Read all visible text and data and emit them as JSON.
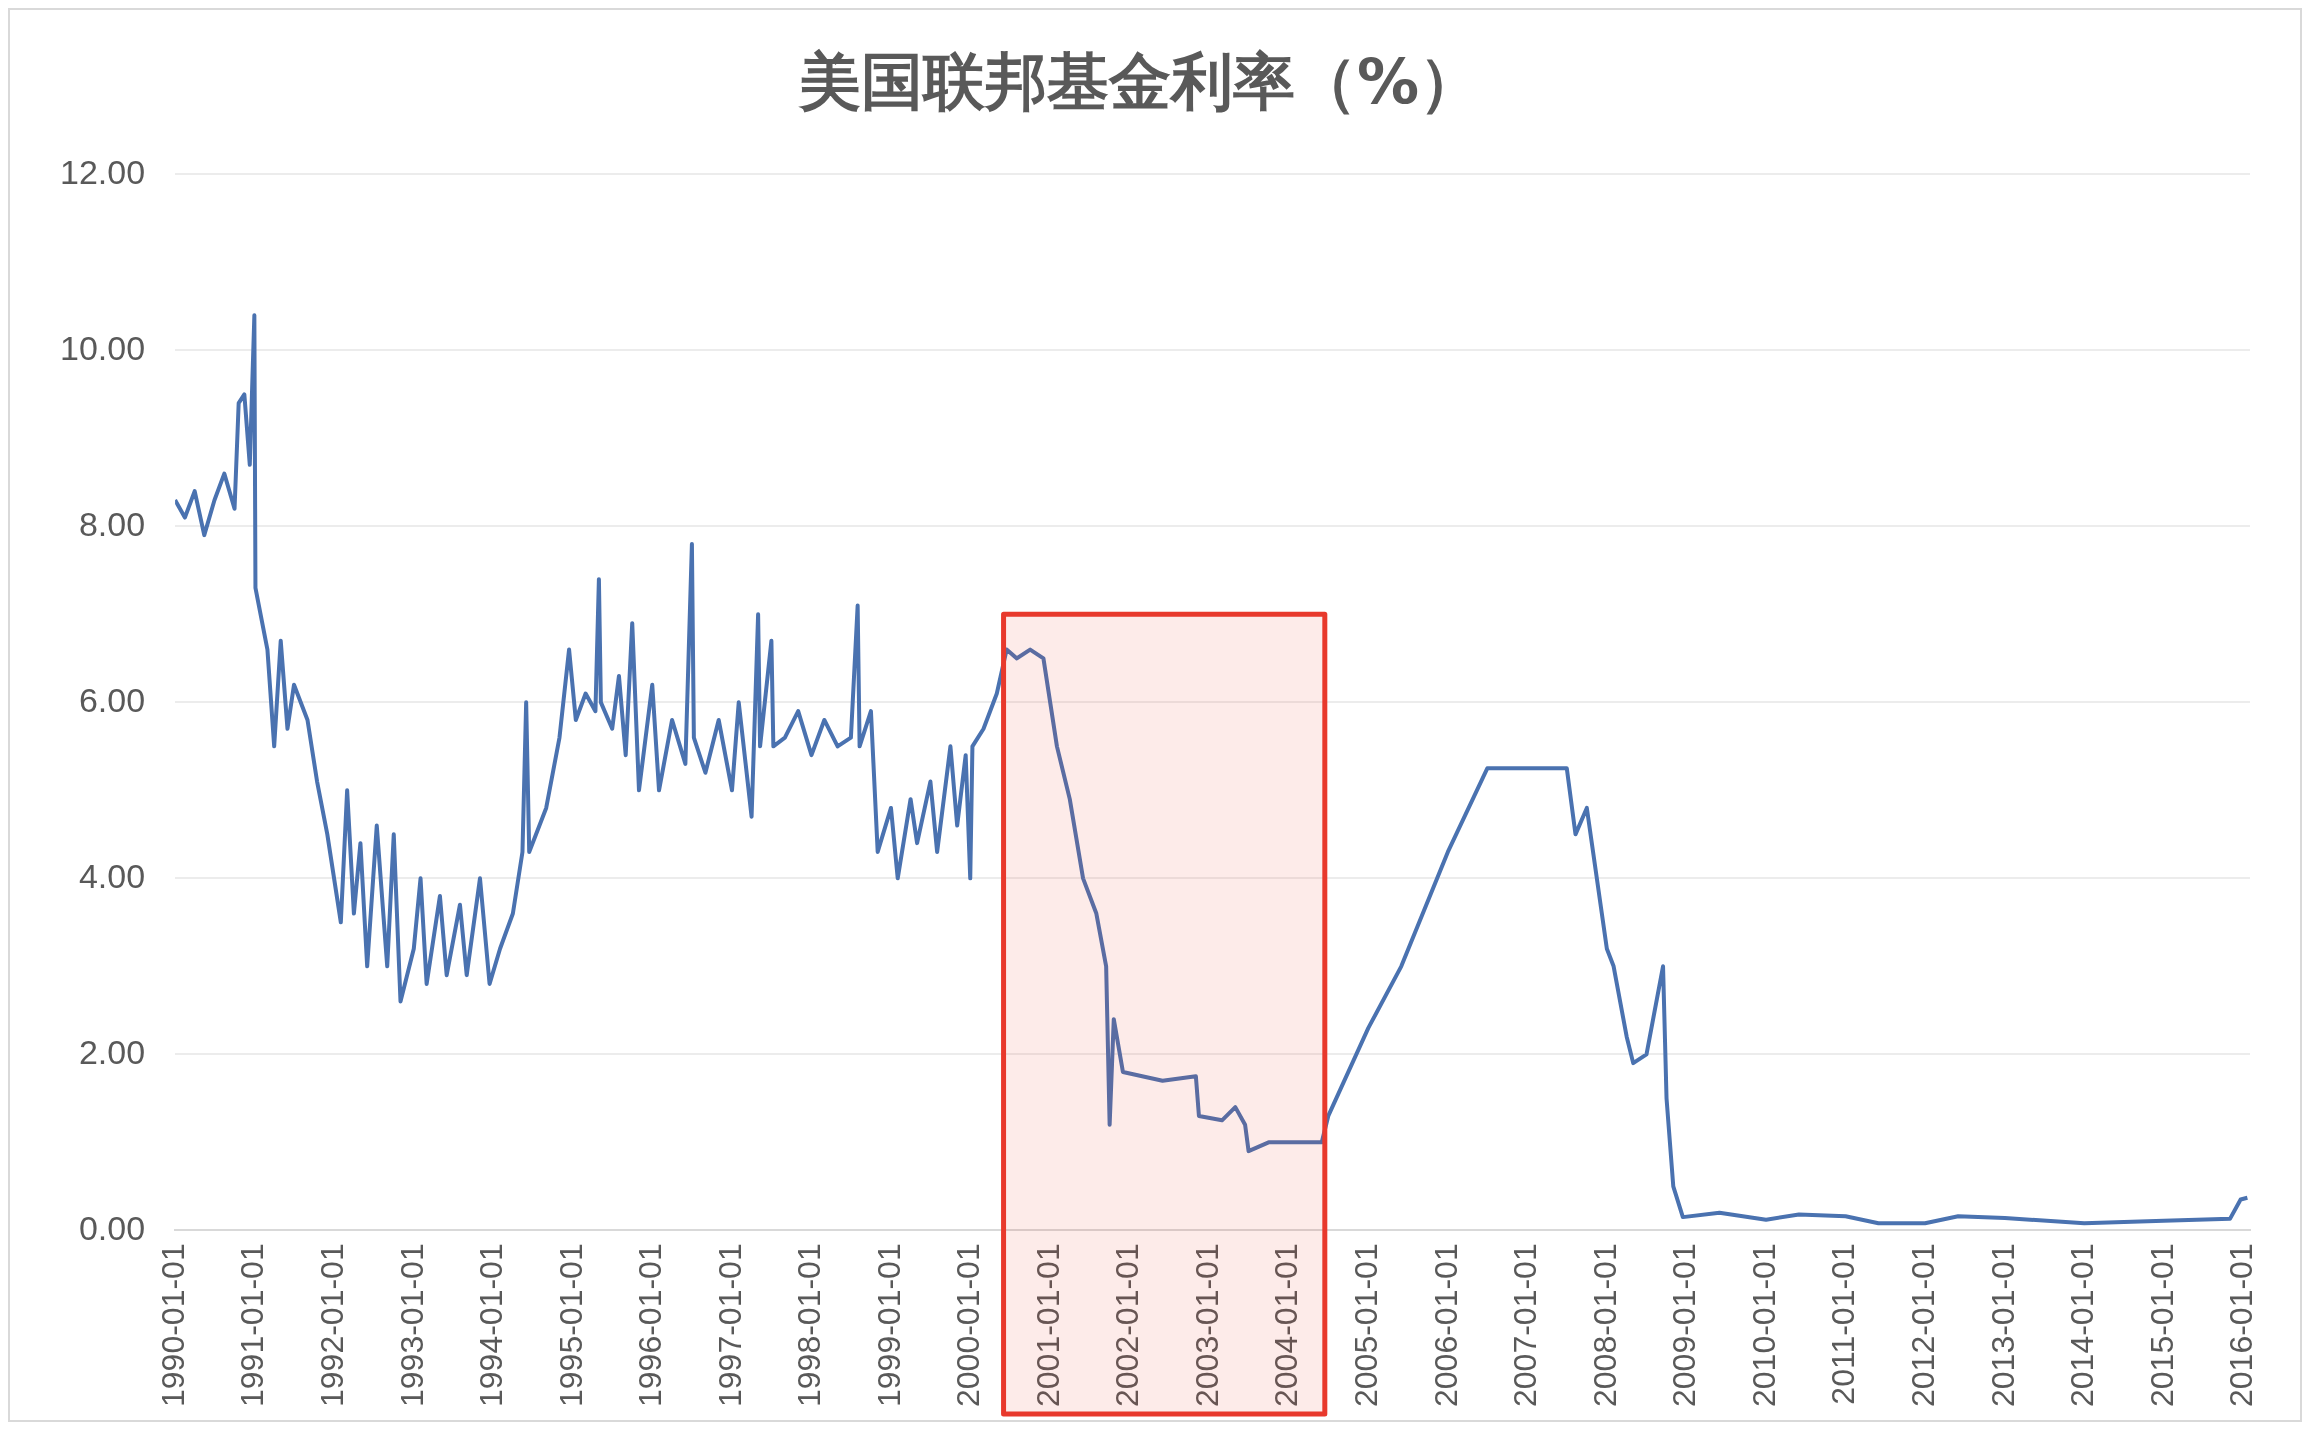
{
  "chart_data": {
    "type": "line",
    "title": "美国联邦基金利率（%）",
    "x": [
      "1990-01-01",
      "1990-02-15",
      "1990-04-01",
      "1990-05-15",
      "1990-07-01",
      "1990-08-15",
      "1990-10-01",
      "1990-10-20",
      "1990-11-15",
      "1990-12-10",
      "1990-12-31",
      "1991-01-05",
      "1991-03-01",
      "1991-04-01",
      "1991-05-01",
      "1991-06-01",
      "1991-07-01",
      "1991-09-01",
      "1991-10-15",
      "1991-12-01",
      "1992-01-01",
      "1992-02-01",
      "1992-03-01",
      "1992-04-01",
      "1992-05-01",
      "1992-06-01",
      "1992-07-15",
      "1992-09-01",
      "1992-10-01",
      "1992-11-01",
      "1993-01-01",
      "1993-02-01",
      "1993-03-01",
      "1993-05-01",
      "1993-06-01",
      "1993-08-01",
      "1993-09-01",
      "1993-11-01",
      "1993-12-15",
      "1994-02-01",
      "1994-04-01",
      "1994-05-15",
      "1994-06-01",
      "1994-06-15",
      "1994-09-01",
      "1994-11-01",
      "1994-12-15",
      "1995-01-15",
      "1995-03-01",
      "1995-04-15",
      "1995-05-01",
      "1995-05-10",
      "1995-07-01",
      "1995-08-01",
      "1995-09-01",
      "1995-10-01",
      "1995-11-01",
      "1996-01-01",
      "1996-02-01",
      "1996-04-01",
      "1996-06-01",
      "1996-07-01",
      "1996-07-10",
      "1996-09-01",
      "1996-11-01",
      "1997-01-01",
      "1997-02-01",
      "1997-04-01",
      "1997-05-01",
      "1997-05-10",
      "1997-07-01",
      "1997-07-10",
      "1997-09-01",
      "1997-11-01",
      "1998-01-01",
      "1998-03-01",
      "1998-05-01",
      "1998-07-01",
      "1998-08-01",
      "1998-08-10",
      "1998-10-01",
      "1998-11-01",
      "1999-01-01",
      "1999-02-01",
      "1999-04-01",
      "1999-05-01",
      "1999-07-01",
      "1999-08-01",
      "1999-10-01",
      "1999-11-01",
      "1999-12-10",
      "1999-12-31",
      "2000-01-10",
      "2000-03-01",
      "2000-05-01",
      "2000-06-15",
      "2000-08-01",
      "2000-10-01",
      "2000-12-01",
      "2001-01-01",
      "2001-02-01",
      "2001-04-01",
      "2001-06-01",
      "2001-08-01",
      "2001-09-15",
      "2001-10-01",
      "2001-10-20",
      "2001-12-01",
      "2002-06-01",
      "2002-11-01",
      "2002-11-15",
      "2003-03-01",
      "2003-05-01",
      "2003-06-15",
      "2003-07-01",
      "2003-10-01",
      "2004-06-01",
      "2004-07-01",
      "2005-01-01",
      "2005-06-01",
      "2006-01-01",
      "2006-07-01",
      "2007-07-01",
      "2007-08-10",
      "2007-10-01",
      "2008-01-01",
      "2008-02-01",
      "2008-04-01",
      "2008-05-01",
      "2008-07-01",
      "2008-09-15",
      "2008-10-01",
      "2008-11-01",
      "2008-12-15",
      "2009-06-01",
      "2010-01-01",
      "2010-06-01",
      "2011-01-01",
      "2011-06-01",
      "2012-01-01",
      "2012-06-01",
      "2013-01-01",
      "2014-01-01",
      "2015-01-01",
      "2015-11-01",
      "2015-12-20",
      "2016-01-20"
    ],
    "series": [
      {
        "color": "#4a72b0",
        "values": [
          8.3,
          8.1,
          8.4,
          7.9,
          8.3,
          8.6,
          8.2,
          9.4,
          9.5,
          8.7,
          10.4,
          7.3,
          6.6,
          5.5,
          6.7,
          5.7,
          6.2,
          5.8,
          5.1,
          4.5,
          4.0,
          3.5,
          5.0,
          3.6,
          4.4,
          3.0,
          4.6,
          3.0,
          4.5,
          2.6,
          3.2,
          4.0,
          2.8,
          3.8,
          2.9,
          3.7,
          2.9,
          4.0,
          2.8,
          3.2,
          3.6,
          4.3,
          6.0,
          4.3,
          4.8,
          5.6,
          6.6,
          5.8,
          6.1,
          5.9,
          7.4,
          6.0,
          5.7,
          6.3,
          5.4,
          6.9,
          5.0,
          6.2,
          5.0,
          5.8,
          5.3,
          7.8,
          5.6,
          5.2,
          5.8,
          5.0,
          6.0,
          4.7,
          7.0,
          5.5,
          6.7,
          5.5,
          5.6,
          5.9,
          5.4,
          5.8,
          5.5,
          5.6,
          7.1,
          5.5,
          5.9,
          4.3,
          4.8,
          4.0,
          4.9,
          4.4,
          5.1,
          4.3,
          5.5,
          4.6,
          5.4,
          4.0,
          5.5,
          5.7,
          6.1,
          6.6,
          6.5,
          6.6,
          6.5,
          6.0,
          5.5,
          4.9,
          4.0,
          3.6,
          3.0,
          1.2,
          2.4,
          1.8,
          1.7,
          1.75,
          1.3,
          1.25,
          1.4,
          1.2,
          0.9,
          1.0,
          1.0,
          1.3,
          2.3,
          3.0,
          4.3,
          5.25,
          5.25,
          4.5,
          4.8,
          3.2,
          3.0,
          2.2,
          1.9,
          2.0,
          3.0,
          1.5,
          0.5,
          0.15,
          0.2,
          0.12,
          0.18,
          0.16,
          0.08,
          0.08,
          0.16,
          0.14,
          0.08,
          0.11,
          0.13,
          0.35,
          0.37
        ]
      }
    ],
    "xlim": [
      "1990-01-01",
      "2016-02-01"
    ],
    "xticks": [
      {
        "value": "1990-01-01",
        "label": "1990-01-01"
      },
      {
        "value": "1991-01-01",
        "label": "1991-01-01"
      },
      {
        "value": "1992-01-01",
        "label": "1992-01-01"
      },
      {
        "value": "1993-01-01",
        "label": "1993-01-01"
      },
      {
        "value": "1994-01-01",
        "label": "1994-01-01"
      },
      {
        "value": "1995-01-01",
        "label": "1995-01-01"
      },
      {
        "value": "1996-01-01",
        "label": "1996-01-01"
      },
      {
        "value": "1997-01-01",
        "label": "1997-01-01"
      },
      {
        "value": "1998-01-01",
        "label": "1998-01-01"
      },
      {
        "value": "1999-01-01",
        "label": "1999-01-01"
      },
      {
        "value": "2000-01-01",
        "label": "2000-01-01"
      },
      {
        "value": "2001-01-01",
        "label": "2001-01-01"
      },
      {
        "value": "2002-01-01",
        "label": "2002-01-01"
      },
      {
        "value": "2003-01-01",
        "label": "2003-01-01"
      },
      {
        "value": "2004-01-01",
        "label": "2004-01-01"
      },
      {
        "value": "2005-01-01",
        "label": "2005-01-01"
      },
      {
        "value": "2006-01-01",
        "label": "2006-01-01"
      },
      {
        "value": "2007-01-01",
        "label": "2007-01-01"
      },
      {
        "value": "2008-01-01",
        "label": "2008-01-01"
      },
      {
        "value": "2009-01-01",
        "label": "2009-01-01"
      },
      {
        "value": "2010-01-01",
        "label": "2010-01-01"
      },
      {
        "value": "2011-01-01",
        "label": "2011-01-01"
      },
      {
        "value": "2012-01-01",
        "label": "2012-01-01"
      },
      {
        "value": "2013-01-01",
        "label": "2013-01-01"
      },
      {
        "value": "2014-01-01",
        "label": "2014-01-01"
      },
      {
        "value": "2015-01-01",
        "label": "2015-01-01"
      },
      {
        "value": "2016-01-01",
        "label": "2016-01-01"
      }
    ],
    "ylim": [
      0,
      12
    ],
    "yticks": [
      {
        "value": 0,
        "label": "0.00"
      },
      {
        "value": 2,
        "label": "2.00"
      },
      {
        "value": 4,
        "label": "4.00"
      },
      {
        "value": 6,
        "label": "6.00"
      },
      {
        "value": 8,
        "label": "8.00"
      },
      {
        "value": 10,
        "label": "10.00"
      },
      {
        "value": 12,
        "label": "12.00"
      }
    ],
    "grid": "y",
    "legend": false,
    "marker": "none",
    "line_style": "solid",
    "bands": [
      {
        "axis": "x",
        "from": "2000-06-01",
        "to": "2004-06-15",
        "color": "#e8392c"
      }
    ]
  }
}
